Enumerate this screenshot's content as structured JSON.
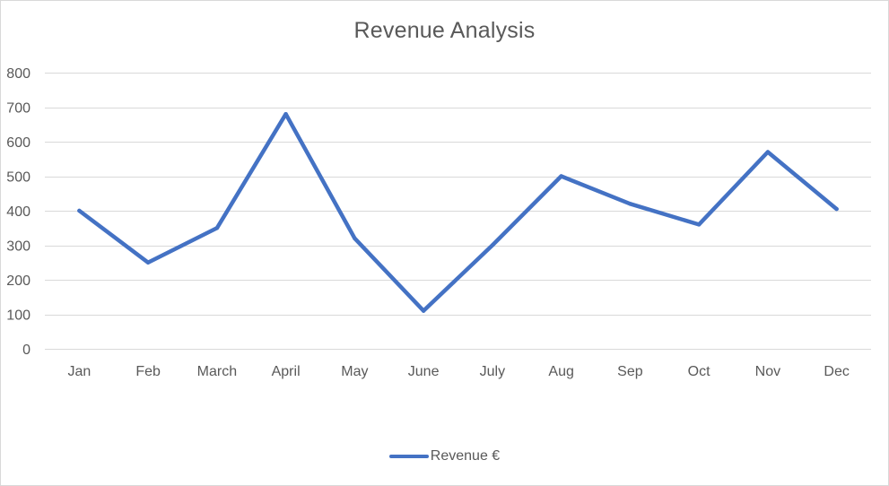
{
  "chart_data": {
    "type": "line",
    "title": "Revenue Analysis",
    "xlabel": "",
    "ylabel": "",
    "categories": [
      "Jan",
      "Feb",
      "March",
      "April",
      "May",
      "June",
      "July",
      "Aug",
      "Sep",
      "Oct",
      "Nov",
      "Dec"
    ],
    "series": [
      {
        "name": "Revenue €",
        "color": "#4472c4",
        "values": [
          400,
          250,
          350,
          680,
          320,
          110,
          300,
          500,
          420,
          360,
          570,
          405
        ]
      }
    ],
    "ylim": [
      0,
      800
    ],
    "yticks": [
      0,
      100,
      200,
      300,
      400,
      500,
      600,
      700,
      800
    ],
    "grid": true,
    "legend_position": "bottom"
  }
}
